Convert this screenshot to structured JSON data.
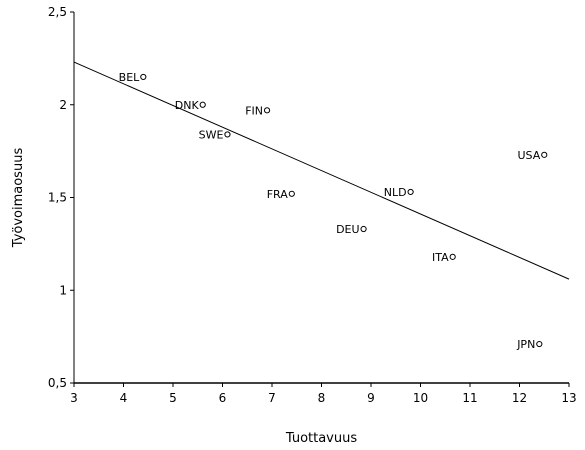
{
  "chart_data": {
    "type": "scatter",
    "title": "",
    "xlabel": "Tuottavuus",
    "ylabel": "Työvoimaosuus",
    "xlim": [
      3,
      13
    ],
    "ylim": [
      0.5,
      2.5
    ],
    "xticks": [
      3,
      4,
      5,
      6,
      7,
      8,
      9,
      10,
      11,
      12,
      13
    ],
    "xtick_labels": [
      "3",
      "4",
      "5",
      "6",
      "7",
      "8",
      "9",
      "10",
      "11",
      "12",
      "13"
    ],
    "yticks": [
      0.5,
      1,
      1.5,
      2,
      2.5
    ],
    "ytick_labels": [
      "0,5",
      "1",
      "1,5",
      "2",
      "2,5"
    ],
    "grid": false,
    "points": [
      {
        "label": "BEL",
        "x": 4.4,
        "y": 2.15
      },
      {
        "label": "DNK",
        "x": 5.6,
        "y": 2.0
      },
      {
        "label": "FIN",
        "x": 6.9,
        "y": 1.97
      },
      {
        "label": "SWE",
        "x": 6.1,
        "y": 1.84
      },
      {
        "label": "FRA",
        "x": 7.4,
        "y": 1.52
      },
      {
        "label": "NLD",
        "x": 9.8,
        "y": 1.53
      },
      {
        "label": "USA",
        "x": 12.5,
        "y": 1.73
      },
      {
        "label": "DEU",
        "x": 8.85,
        "y": 1.33
      },
      {
        "label": "ITA",
        "x": 10.65,
        "y": 1.18
      },
      {
        "label": "JPN",
        "x": 12.4,
        "y": 0.71
      }
    ],
    "trendline": {
      "x": [
        3,
        13
      ],
      "y": [
        2.23,
        1.06
      ]
    }
  }
}
